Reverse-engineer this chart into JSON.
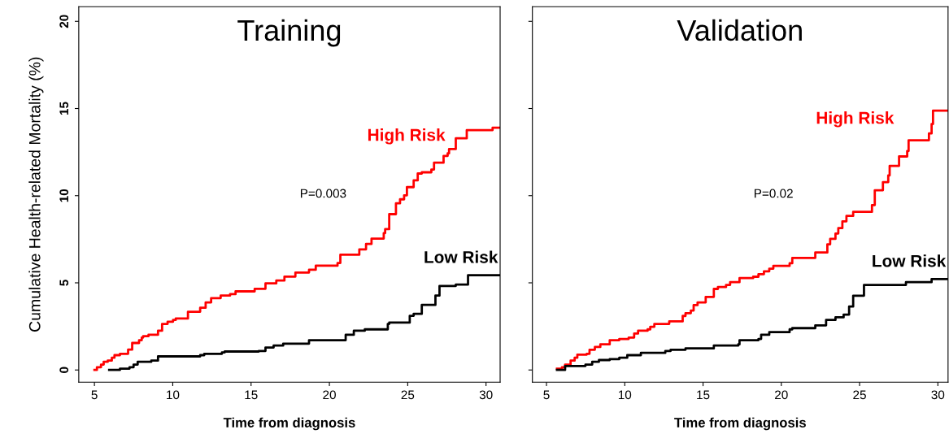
{
  "chart_data": [
    {
      "type": "step",
      "title": "Training",
      "xlabel": "Time from diagnosis",
      "ylabel": "Cumulative Health-related Mortality (%)",
      "xlim": [
        4.0,
        30.9
      ],
      "xticks": [
        5,
        10,
        15,
        20,
        25,
        30
      ],
      "ylim": [
        -0.7,
        20.84
      ],
      "yticks": [
        0,
        5,
        10,
        15,
        20
      ],
      "annotations": [
        "P=0.003"
      ],
      "series": [
        {
          "name": "High Risk",
          "color": "#ff0000",
          "x": [
            5.0,
            5.16,
            5.42,
            5.59,
            5.85,
            6.11,
            6.28,
            6.63,
            7.15,
            7.41,
            7.85,
            8.02,
            8.11,
            8.45,
            9.06,
            9.32,
            9.67,
            10.02,
            10.19,
            10.97,
            11.75,
            12.1,
            12.45,
            13.06,
            13.66,
            14.01,
            15.23,
            15.92,
            16.61,
            17.13,
            17.83,
            18.7,
            19.13,
            20.52,
            20.7,
            21.91,
            22.34,
            22.69,
            23.47,
            23.56,
            23.82,
            24.25,
            24.51,
            24.77,
            24.95,
            25.38,
            25.64,
            25.9,
            26.51,
            26.68,
            27.29,
            27.55,
            27.64,
            28.07,
            28.77,
            30.42,
            30.76,
            30.9
          ],
          "values": [
            0,
            0.16,
            0.31,
            0.47,
            0.54,
            0.7,
            0.85,
            0.93,
            1.17,
            1.55,
            1.71,
            1.86,
            1.94,
            2.02,
            2.25,
            2.64,
            2.77,
            2.87,
            2.95,
            3.34,
            3.57,
            3.88,
            4.12,
            4.27,
            4.35,
            4.51,
            4.66,
            4.97,
            5.13,
            5.36,
            5.59,
            5.75,
            5.98,
            6.14,
            6.61,
            6.92,
            7.23,
            7.54,
            7.85,
            8.08,
            8.94,
            9.56,
            9.79,
            10.02,
            10.49,
            10.88,
            11.27,
            11.34,
            11.5,
            11.89,
            12.28,
            12.43,
            12.67,
            13.29,
            13.76,
            13.9,
            13.9,
            13.9
          ]
        },
        {
          "name": "Low Risk",
          "color": "#000000",
          "x": [
            5.94,
            6.63,
            7.24,
            7.5,
            7.76,
            8.63,
            9.06,
            11.75,
            12.01,
            13.14,
            13.32,
            15.49,
            15.92,
            16.44,
            17.05,
            18.7,
            21.04,
            21.56,
            22.26,
            23.73,
            23.82,
            25.13,
            25.38,
            25.9,
            26.77,
            27.03,
            28.07,
            28.85,
            30.9
          ],
          "values": [
            0,
            0.08,
            0.16,
            0.31,
            0.47,
            0.54,
            0.78,
            0.85,
            0.93,
            1.01,
            1.06,
            1.09,
            1.29,
            1.4,
            1.51,
            1.71,
            2.02,
            2.25,
            2.33,
            2.64,
            2.72,
            3.11,
            3.22,
            3.73,
            4.27,
            4.82,
            4.9,
            5.44,
            5.44
          ]
        }
      ]
    },
    {
      "type": "step",
      "title": "Validation",
      "xlabel": "Time from diagnosis",
      "xlim": [
        4.1,
        30.65
      ],
      "xticks": [
        5,
        10,
        15,
        20,
        25,
        30
      ],
      "ylim": [
        -0.7,
        20.84
      ],
      "yticks": [
        0,
        5,
        10,
        15,
        20
      ],
      "tick_labels": "x",
      "annotations": [
        "P=0.02"
      ],
      "series": [
        {
          "name": "High Risk",
          "color": "#ff0000",
          "x": [
            5.67,
            5.99,
            6.19,
            6.54,
            6.8,
            6.97,
            7.57,
            7.75,
            8.09,
            8.44,
            9.04,
            9.65,
            10.25,
            10.6,
            10.85,
            11.46,
            11.63,
            11.89,
            12.84,
            13.7,
            13.88,
            14.22,
            14.4,
            14.65,
            15.17,
            15.69,
            15.95,
            16.47,
            16.73,
            17.33,
            18.2,
            18.54,
            18.89,
            19.23,
            19.49,
            20.53,
            20.7,
            22.17,
            22.94,
            23.12,
            23.46,
            23.64,
            23.9,
            24.16,
            24.59,
            25.79,
            25.97,
            26.49,
            26.83,
            26.92,
            27.52,
            28.04,
            28.13,
            29.43,
            29.6,
            29.69,
            30.63
          ],
          "values": [
            0.08,
            0.16,
            0.31,
            0.54,
            0.7,
            0.88,
            0.93,
            1.16,
            1.32,
            1.47,
            1.71,
            1.78,
            1.86,
            2.09,
            2.25,
            2.33,
            2.48,
            2.64,
            2.79,
            3.1,
            3.26,
            3.41,
            3.72,
            3.88,
            4.19,
            4.65,
            4.76,
            4.88,
            5.04,
            5.27,
            5.35,
            5.5,
            5.66,
            5.81,
            5.97,
            6.12,
            6.43,
            6.74,
            7.21,
            7.52,
            7.83,
            8.14,
            8.53,
            8.84,
            9.07,
            9.46,
            10.31,
            10.78,
            11.16,
            11.71,
            12.25,
            12.56,
            13.18,
            13.57,
            14.11,
            14.88,
            14.88
          ]
        },
        {
          "name": "Low Risk",
          "color": "#000000",
          "x": [
            5.67,
            6.19,
            7.49,
            7.92,
            8.35,
            9.04,
            9.65,
            10.16,
            11.03,
            12.59,
            12.93,
            13.88,
            15.69,
            17.25,
            17.33,
            18.54,
            18.71,
            19.23,
            20.53,
            20.7,
            22.17,
            22.86,
            23.46,
            23.98,
            24.33,
            24.59,
            25.28,
            27.96,
            29.6,
            30.63
          ],
          "values": [
            0,
            0.23,
            0.31,
            0.47,
            0.57,
            0.62,
            0.7,
            0.85,
            0.98,
            1.09,
            1.16,
            1.24,
            1.4,
            1.47,
            1.71,
            1.78,
            2.02,
            2.17,
            2.33,
            2.4,
            2.56,
            2.87,
            3.02,
            3.18,
            3.64,
            4.26,
            4.88,
            5.04,
            5.22,
            5.22
          ]
        }
      ]
    }
  ]
}
